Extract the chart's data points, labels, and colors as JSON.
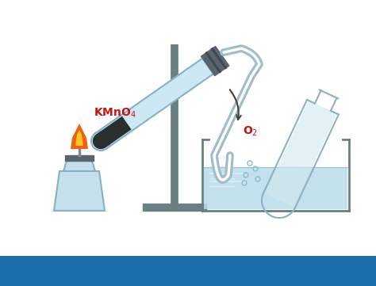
{
  "bg_color": "#ffffff",
  "stand_color": "#6a8080",
  "glass_color": "#c8e8f2",
  "glass_edge_color": "#90b8cc",
  "tube_color": "#cce8f4",
  "tube_edge_color": "#88b0c4",
  "stopper_color": "#5a6470",
  "water_color": "#b8dcea",
  "flame_orange": "#f06010",
  "flame_yellow": "#f8c820",
  "lamp_body_color": "#c4e0ec",
  "lamp_edge_color": "#88b0c4",
  "KMnO4_color": "#cc1111",
  "O2_color": "#cc1111",
  "dark_solid": "#2a3030",
  "delivery_tube_color": "#a0bcc8",
  "collection_flask_color": "#d0e8f0",
  "collection_flask_edge": "#90b0c0",
  "arrow_color": "#404040",
  "bubble_color": "#90b8c8"
}
